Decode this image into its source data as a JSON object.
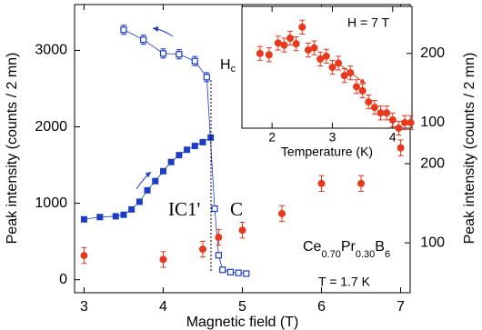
{
  "chart_data": [
    {
      "type": "scatter",
      "xlabel": "Magnetic field (T)",
      "ylabel": "Peak intensity (counts / 2 mn)",
      "y2label": "Peak intensity (counts / 2 mn)",
      "xlim": [
        2.88,
        7.12
      ],
      "xticks": [
        3,
        4,
        5,
        6,
        7
      ],
      "ylim": [
        -170,
        3600
      ],
      "yticks": [
        0,
        1000,
        2000,
        3000
      ],
      "y2lim": [
        37,
        401
      ],
      "y2ticks": [
        100,
        200
      ],
      "phase_labels": [
        "IC1'",
        "C"
      ],
      "critical_field": {
        "symbol": "H",
        "subscript": "c"
      },
      "compound": [
        "Ce",
        "0.70",
        "Pr",
        "0.30",
        "B",
        "6"
      ],
      "temperature_label": "T = 1.7 K",
      "series": [
        {
          "marker": "square",
          "color": "#1a3cc8",
          "line": true,
          "x": [
            3.0,
            3.2,
            3.4,
            3.5,
            3.6,
            3.7,
            3.8,
            3.9,
            4.0,
            4.1,
            4.2,
            4.3,
            4.4,
            4.5,
            4.6
          ],
          "values": [
            790,
            820,
            830,
            850,
            920,
            1020,
            1170,
            1290,
            1420,
            1540,
            1630,
            1700,
            1750,
            1800,
            1860
          ]
        },
        {
          "marker": "open-square",
          "color": "#1a3cc8",
          "line": true,
          "x": [
            3.5,
            3.75,
            4.0,
            4.2,
            4.4,
            4.55,
            4.65,
            4.7,
            4.75,
            4.85,
            4.95,
            5.05
          ],
          "values": [
            3270,
            3140,
            2960,
            2950,
            2860,
            2650,
            930,
            320,
            130,
            100,
            90,
            80
          ],
          "errors": [
            60,
            60,
            60,
            60,
            60,
            60,
            0,
            0,
            0,
            0,
            0,
            0
          ]
        },
        {
          "marker": "circle",
          "color": "#e8391d",
          "line": false,
          "axis": "y2",
          "x": [
            3.0,
            4.0,
            4.5,
            4.7,
            5.0,
            5.5,
            6.0,
            6.5,
            7.0
          ],
          "values": [
            84,
            79,
            92,
            107,
            116,
            137,
            175,
            175,
            220
          ],
          "errors": [
            10,
            10,
            10,
            10,
            10,
            10,
            10,
            10,
            10
          ]
        }
      ]
    },
    {
      "type": "scatter",
      "xlabel": "Temperature (K)",
      "field_label": "H = 7 T",
      "xlim": [
        1.5,
        4.32
      ],
      "xticks": [
        2,
        3,
        4
      ],
      "ylim": [
        92,
        268
      ],
      "yticks": [
        100,
        200
      ],
      "series": [
        {
          "marker": "circle",
          "color": "#e8391d",
          "line": false,
          "x": [
            1.8,
            1.95,
            2.1,
            2.2,
            2.3,
            2.4,
            2.5,
            2.6,
            2.7,
            2.8,
            2.9,
            3.0,
            3.1,
            3.2,
            3.3,
            3.4,
            3.5,
            3.6,
            3.7,
            3.8,
            3.9,
            4.0,
            4.1,
            4.2,
            4.3
          ],
          "values": [
            200,
            198,
            215,
            212,
            222,
            214,
            238,
            205,
            208,
            192,
            196,
            180,
            186,
            168,
            172,
            152,
            146,
            130,
            122,
            114,
            114,
            104,
            92,
            100,
            100
          ],
          "errors": [
            10,
            10,
            10,
            10,
            10,
            10,
            10,
            10,
            10,
            10,
            10,
            10,
            10,
            10,
            10,
            10,
            10,
            10,
            10,
            10,
            10,
            10,
            10,
            10,
            10
          ]
        }
      ]
    }
  ]
}
